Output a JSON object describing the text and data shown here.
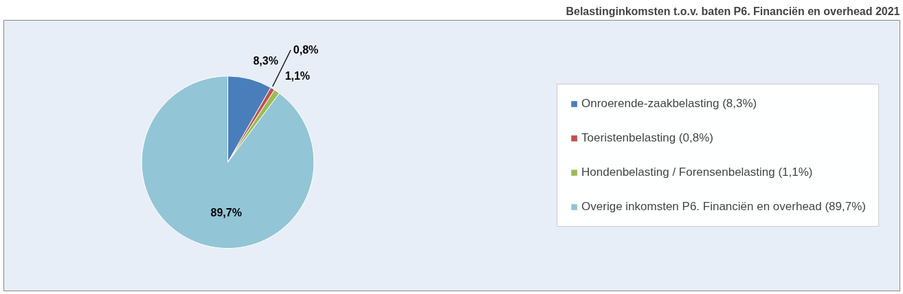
{
  "chart_data": {
    "type": "pie",
    "title": "Belastinginkomsten t.o.v. baten P6. Financiën en overhead 2021",
    "categories": [
      "Onroerende-zaakbelasting (8,3%)",
      "Toeristenbelasting (0,8%)",
      "Hondenbelasting / Forensenbelasting (1,1%)",
      "Overige inkomsten P6. Financiën en overhead (89,7%)"
    ],
    "values": [
      8.3,
      0.8,
      1.1,
      89.7
    ],
    "colors": [
      "#4a7ebb",
      "#c0504d",
      "#9bbb59",
      "#92c5d6"
    ],
    "value_labels": [
      "8,3%",
      "0,8%",
      "1,1%",
      "89,7%"
    ],
    "legend": "right"
  }
}
